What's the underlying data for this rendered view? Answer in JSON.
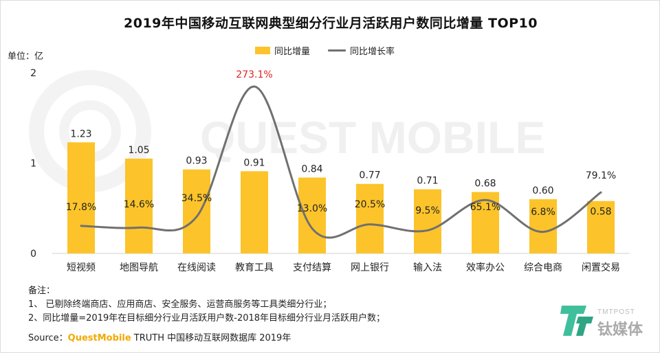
{
  "title": "2019年中国移动互联网典型细分行业月活跃用户数同比增量 TOP10",
  "unit_label": "单位：亿",
  "legend": {
    "bar": "同比增量",
    "line": "同比增长率"
  },
  "colors": {
    "bar": "#fcc42a",
    "line": "#707070",
    "highlight": "#e02020",
    "axis": "#d0d0d0"
  },
  "notes": {
    "heading": "备注：",
    "item1": "1、 已剔除终端商店、应用商店、安全服务、运营商服务等工具类细分行业；",
    "item2": "2、同比增量=2019年在目标细分行业月活跃用户数-2018年目标细分行业月活跃用户数；"
  },
  "source": {
    "prefix": "Source：",
    "brand": "QuestMobile",
    "suffix": " TRUTH 中国移动互联网数据库 2019年"
  },
  "watermark": "QUEST MOBILE",
  "logo": {
    "sub": "TMTPOST",
    "mark": "钛媒体"
  },
  "chart_data": {
    "type": "bar",
    "categories": [
      "短视频",
      "地图导航",
      "在线阅读",
      "教育工具",
      "支付结算",
      "网上银行",
      "输入法",
      "效率办公",
      "综合电商",
      "闲置交易"
    ],
    "series": [
      {
        "name": "同比增量",
        "type": "bar",
        "values": [
          1.23,
          1.05,
          0.93,
          0.91,
          0.84,
          0.77,
          0.71,
          0.68,
          0.6,
          0.58
        ],
        "labels": [
          "1.23",
          "1.05",
          "0.93",
          "0.91",
          "0.84",
          "0.77",
          "0.71",
          "0.68",
          "0.60",
          "0.58"
        ]
      },
      {
        "name": "同比增长率",
        "type": "line",
        "values": [
          17.8,
          14.6,
          34.5,
          273.1,
          13.0,
          20.5,
          9.5,
          65.1,
          6.8,
          79.1
        ],
        "labels": [
          "17.8%",
          "14.6%",
          "34.5%",
          "273.1%",
          "13.0%",
          "20.5%",
          "9.5%",
          "65.1%",
          "6.8%",
          "79.1%"
        ]
      }
    ],
    "y_ticks": [
      "0",
      "1",
      "2"
    ],
    "ylim": [
      0,
      2
    ],
    "highlight_label_index": 3
  }
}
